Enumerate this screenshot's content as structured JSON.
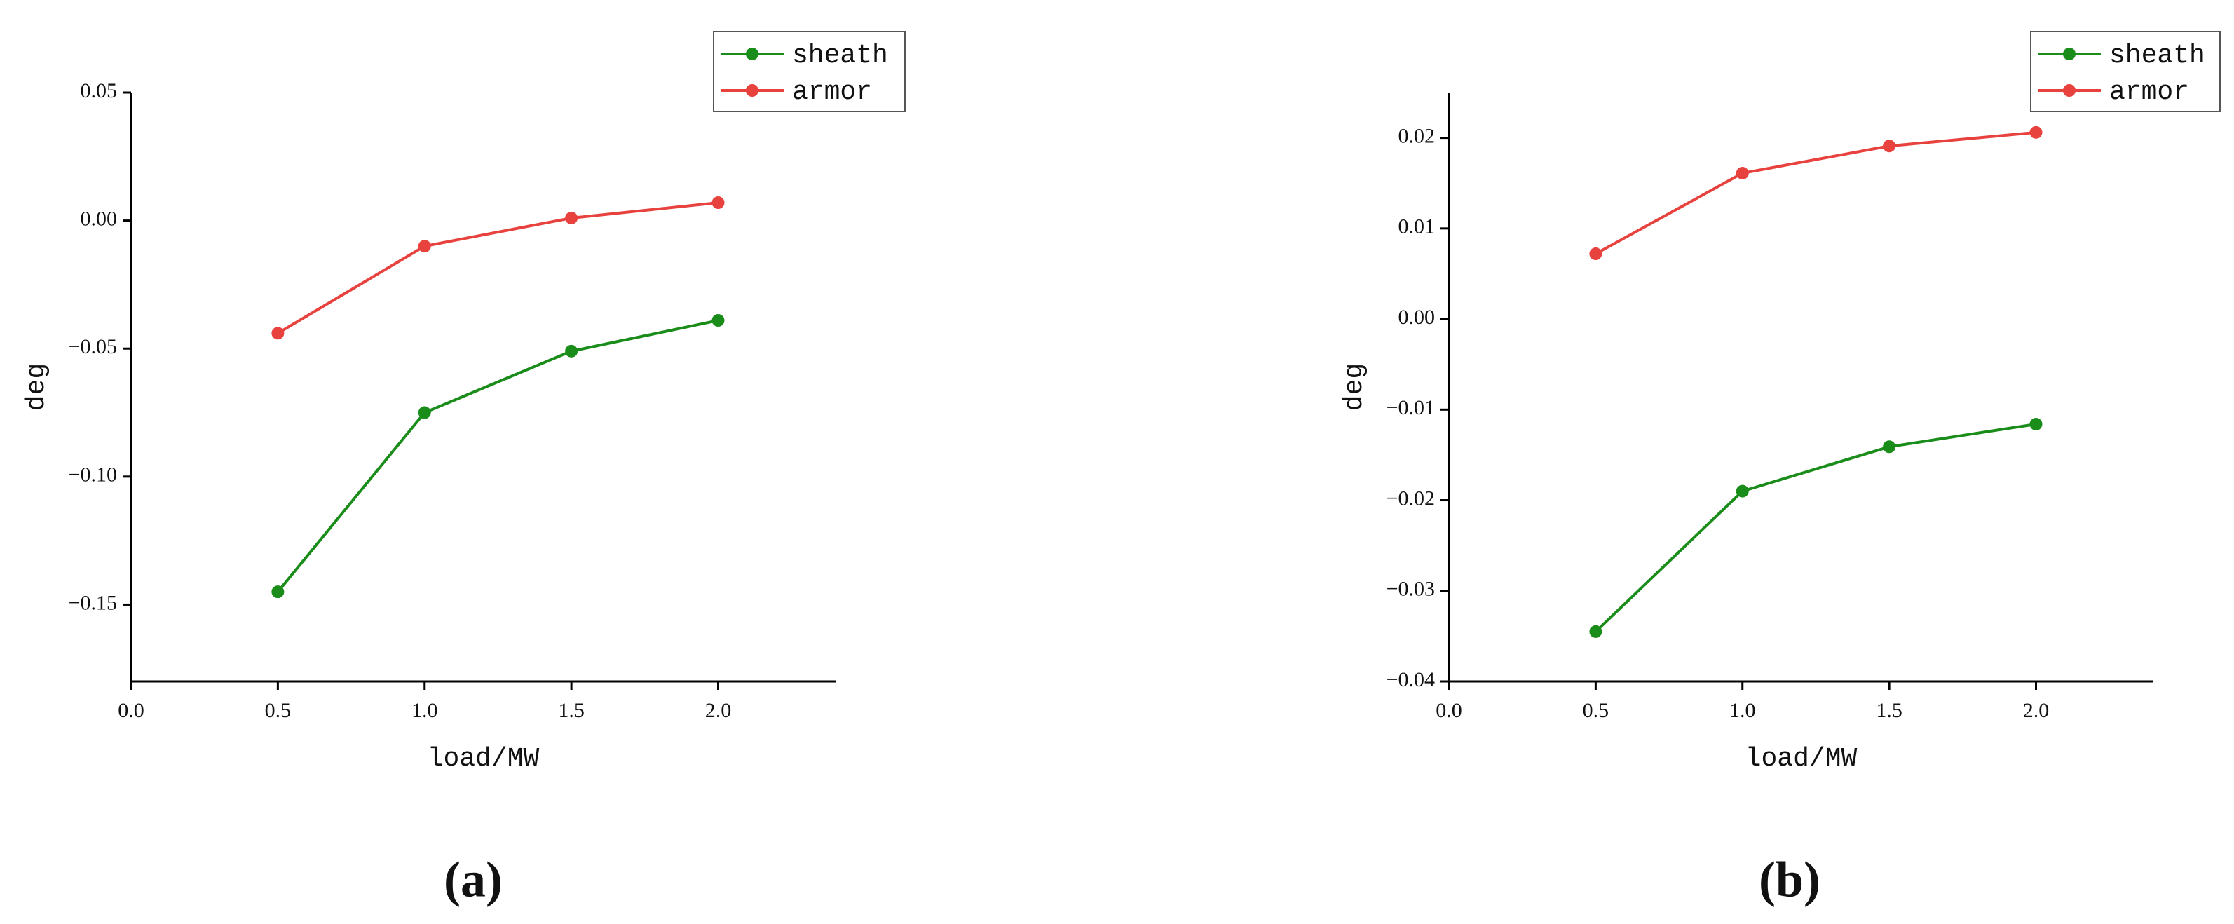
{
  "chart_data": [
    {
      "type": "line",
      "caption": "(a)",
      "xlabel": "load/MW",
      "ylabel": "deg",
      "x": [
        0.5,
        1.0,
        1.5,
        2.0
      ],
      "series": [
        {
          "name": "sheath",
          "color": "#1a8c1a",
          "values": [
            -0.145,
            -0.075,
            -0.051,
            -0.039
          ]
        },
        {
          "name": "armor",
          "color": "#e8423f",
          "values": [
            -0.044,
            -0.01,
            0.001,
            0.007
          ]
        }
      ],
      "xlim": [
        0,
        2.4
      ],
      "xticks": [
        {
          "value": 0,
          "label": "0.0"
        },
        0.5,
        {
          "value": 1,
          "label": "1.0"
        },
        1.5,
        {
          "value": 2,
          "label": "2.0"
        }
      ],
      "ylim": [
        -0.18,
        0.05
      ],
      "yticks": [
        {
          "value": -0.15,
          "label": "−0.15"
        },
        {
          "value": -0.1,
          "label": "−0.10"
        },
        {
          "value": -0.05,
          "label": "−0.05"
        },
        {
          "value": 0,
          "label": "0.00"
        },
        0.05
      ]
    },
    {
      "type": "line",
      "caption": "(b)",
      "xlabel": "load/MW",
      "ylabel": "deg",
      "x": [
        0.5,
        1.0,
        1.5,
        2.0
      ],
      "series": [
        {
          "name": "sheath",
          "color": "#1a8c1a",
          "values": [
            -0.0345,
            -0.019,
            -0.0141,
            -0.0116
          ]
        },
        {
          "name": "armor",
          "color": "#e8423f",
          "values": [
            0.0072,
            0.0161,
            0.0191,
            0.0206
          ]
        }
      ],
      "xlim": [
        0,
        2.4
      ],
      "xticks": [
        {
          "value": 0,
          "label": "0.0"
        },
        0.5,
        {
          "value": 1,
          "label": "1.0"
        },
        1.5,
        {
          "value": 2,
          "label": "2.0"
        }
      ],
      "ylim": [
        -0.04,
        0.025
      ],
      "yticks": [
        {
          "value": -0.04,
          "label": "−0.04"
        },
        {
          "value": -0.03,
          "label": "−0.03"
        },
        {
          "value": -0.02,
          "label": "−0.02"
        },
        {
          "value": -0.01,
          "label": "−0.01"
        },
        {
          "value": 0,
          "label": "0.00"
        },
        0.01,
        0.02
      ]
    }
  ]
}
